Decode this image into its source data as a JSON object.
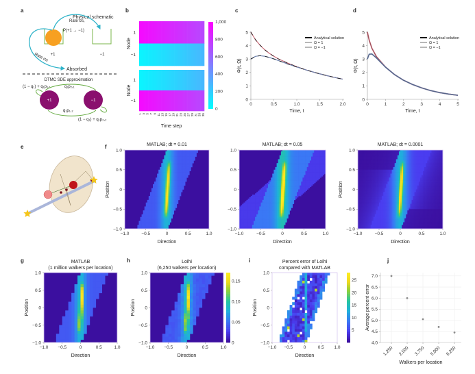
{
  "panel_labels": {
    "a": "a",
    "b": "b",
    "c": "c",
    "d": "d",
    "e": "e",
    "f": "f",
    "g": "g",
    "h": "h",
    "i": "i",
    "j": "j"
  },
  "panel_a": {
    "title": "Physical schematic",
    "rate_top": "Rate σs,",
    "prob": "P(+1 → −1)",
    "rate_left": "Rate σa",
    "absorbed": "Absorbed",
    "well_plus": "+1",
    "well_minus": "−1",
    "dtmc": "DTMC SDE approximation",
    "loop_plus": "(1 − q₁) + q₁p₁,₁",
    "edge_top": "q₁p₂,₁",
    "edge_bottom": "q₁p₁,₂",
    "loop_minus": "(1 − q₁) + q₁p₂,₂",
    "node_plus": "+1",
    "node_minus": "−1"
  },
  "colors": {
    "well": "#7ab648",
    "ball": "#f7a021",
    "arrow": "#2fb3c9",
    "node": "#8a0f6e",
    "omega_pos": "#c96a78",
    "omega_neg": "#6f82ad",
    "analytical": "#111111",
    "track": "#aab6da",
    "star": "#f5c518",
    "sphere": "#f1e4cc"
  },
  "chart_data": [
    {
      "id": "b",
      "type": "heatmap",
      "colormap": "cool",
      "xlabel": "Time step",
      "ylabel": "Node",
      "xticks": [
        "1",
        "3",
        "5",
        "7",
        "9",
        "11",
        "13",
        "15",
        "17",
        "19",
        "21",
        "23",
        "25",
        "27",
        "29",
        "31",
        "33",
        "35"
      ],
      "yticks": [
        "1",
        "−1"
      ],
      "colorbar": {
        "range": [
          0,
          1000
        ],
        "ticks": [
          {
            "v": 0,
            "t": "0"
          },
          {
            "v": 200,
            "t": "200"
          },
          {
            "v": 400,
            "t": "400"
          },
          {
            "v": 600,
            "t": "600"
          },
          {
            "v": 800,
            "t": "800"
          },
          {
            "v": 1000,
            "t": "1,000"
          }
        ]
      },
      "panels": [
        {
          "rows": [
            {
              "node": "1",
              "values": [
                960,
                953,
                946,
                939,
                932,
                925,
                918,
                911,
                904,
                897,
                890,
                883,
                876,
                869,
                862,
                855,
                848,
                841,
                834,
                827,
                820,
                813,
                806,
                799,
                792,
                785,
                778,
                771,
                764,
                757,
                750,
                743,
                736,
                729,
                722
              ]
            },
            {
              "node": "−1",
              "values": [
                40,
                47,
                54,
                61,
                68,
                75,
                82,
                89,
                96,
                103,
                110,
                117,
                124,
                131,
                138,
                145,
                152,
                159,
                166,
                173,
                180,
                187,
                194,
                201,
                208,
                215,
                222,
                229,
                236,
                243,
                250,
                257,
                264,
                271,
                278
              ]
            }
          ]
        },
        {
          "rows": [
            {
              "node": "1",
              "values": [
                40,
                47,
                54,
                61,
                68,
                75,
                82,
                89,
                96,
                103,
                110,
                117,
                124,
                131,
                138,
                145,
                152,
                159,
                166,
                173,
                180,
                187,
                194,
                201,
                208,
                215,
                222,
                229,
                236,
                243,
                250,
                257,
                264,
                271,
                278
              ]
            },
            {
              "node": "−1",
              "values": [
                960,
                953,
                946,
                939,
                932,
                925,
                918,
                911,
                904,
                897,
                890,
                883,
                876,
                869,
                862,
                855,
                848,
                841,
                834,
                827,
                820,
                813,
                806,
                799,
                792,
                785,
                778,
                771,
                764,
                757,
                750,
                743,
                736,
                729,
                722
              ]
            }
          ]
        }
      ]
    },
    {
      "id": "c",
      "type": "line",
      "xlabel": "Time, t",
      "ylabel": "Φ(t, Ω)",
      "xlim": [
        0,
        2.0
      ],
      "ylim": [
        0,
        5
      ],
      "xticks": [
        {
          "v": 0,
          "t": "0"
        },
        {
          "v": 0.5,
          "t": "0.5"
        },
        {
          "v": 1.0,
          "t": "1.0"
        },
        {
          "v": 1.5,
          "t": "1.5"
        },
        {
          "v": 2.0,
          "t": "2.0"
        }
      ],
      "yticks": [
        {
          "v": 0,
          "t": "0"
        },
        {
          "v": 1,
          "t": "1"
        },
        {
          "v": 2,
          "t": "2"
        },
        {
          "v": 3,
          "t": "3"
        },
        {
          "v": 4,
          "t": "4"
        },
        {
          "v": 5,
          "t": "5"
        }
      ],
      "legend": "top-right",
      "x": [
        0,
        0.1,
        0.2,
        0.3,
        0.4,
        0.5,
        0.6,
        0.8,
        1.0,
        1.2,
        1.4,
        1.6,
        1.8,
        2.0
      ],
      "series": [
        {
          "name": "Ω = 1",
          "color": "omega_pos",
          "values": [
            5.0,
            4.44,
            4.03,
            3.7,
            3.43,
            3.21,
            3.01,
            2.7,
            2.43,
            2.19,
            1.99,
            1.81,
            1.65,
            1.5
          ]
        },
        {
          "name": "Ω = −1",
          "color": "omega_neg",
          "values": [
            3.0,
            3.2,
            3.25,
            3.21,
            3.12,
            3.01,
            2.89,
            2.64,
            2.41,
            2.19,
            1.99,
            1.81,
            1.65,
            1.5
          ]
        }
      ],
      "analytical_name": "Analytical solution"
    },
    {
      "id": "d",
      "type": "line",
      "xlabel": "Time, t",
      "ylabel": "Φ(t, Ω)",
      "xlim": [
        0,
        5
      ],
      "ylim": [
        0,
        5
      ],
      "xticks": [
        {
          "v": 0,
          "t": "0"
        },
        {
          "v": 1,
          "t": "1"
        },
        {
          "v": 2,
          "t": "2"
        },
        {
          "v": 3,
          "t": "3"
        },
        {
          "v": 4,
          "t": "4"
        },
        {
          "v": 5,
          "t": "5"
        }
      ],
      "yticks": [
        {
          "v": 0,
          "t": "0"
        },
        {
          "v": 1,
          "t": "1"
        },
        {
          "v": 2,
          "t": "2"
        },
        {
          "v": 3,
          "t": "3"
        },
        {
          "v": 4,
          "t": "4"
        },
        {
          "v": 5,
          "t": "5"
        }
      ],
      "legend": "top-right",
      "x": [
        0,
        0.1,
        0.25,
        0.5,
        1,
        1.5,
        2,
        2.5,
        3,
        3.5,
        4,
        4.5,
        5
      ],
      "series": [
        {
          "name": "Ω = 1",
          "color": "omega_pos",
          "values": [
            5.0,
            4.41,
            3.8,
            3.18,
            2.41,
            1.84,
            1.42,
            1.1,
            0.85,
            0.65,
            0.5,
            0.39,
            0.3
          ]
        },
        {
          "name": "Ω = −1",
          "color": "omega_neg",
          "values": [
            3.0,
            3.36,
            3.38,
            3.08,
            2.4,
            1.84,
            1.42,
            1.1,
            0.85,
            0.65,
            0.5,
            0.39,
            0.3
          ]
        }
      ],
      "analytical_name": "Analytical solution"
    },
    {
      "id": "f1",
      "type": "heatmap",
      "title": "MATLAB; dt = 0.01",
      "xlabel": "Direction",
      "ylabel": "Position",
      "xlim": [
        -1,
        1
      ],
      "ylim": [
        -1,
        1
      ]
    },
    {
      "id": "f2",
      "type": "heatmap",
      "title": "MATLAB; dt = 0.05",
      "xlabel": "Direction",
      "ylabel": "",
      "xlim": [
        -1,
        1
      ],
      "ylim": [
        -1,
        1
      ]
    },
    {
      "id": "f3",
      "type": "heatmap",
      "title": "MATLAB; dt = 0.0001",
      "xlabel": "Direction",
      "ylabel": "Position",
      "xlim": [
        -1,
        1
      ],
      "ylim": [
        -1,
        1
      ]
    },
    {
      "id": "g",
      "type": "heatmap",
      "title": "MATLAB",
      "subtitle": "(1 million walkers per location)",
      "xlabel": "Direction",
      "ylabel": "Position",
      "xlim": [
        -1,
        1
      ],
      "ylim": [
        -1,
        1
      ]
    },
    {
      "id": "h",
      "type": "heatmap",
      "title": "Loihi",
      "subtitle": "(6,250 walkers per location)",
      "xlabel": "Direction",
      "ylabel": "Position",
      "xlim": [
        -1,
        1
      ],
      "ylim": [
        -1,
        1
      ],
      "colorbar": {
        "range": [
          0,
          0.17
        ],
        "ticks": [
          {
            "v": 0,
            "t": "0"
          },
          {
            "v": 0.05,
            "t": "0.05"
          },
          {
            "v": 0.1,
            "t": "0.10"
          },
          {
            "v": 0.15,
            "t": "0.15"
          }
        ]
      }
    },
    {
      "id": "i",
      "type": "heatmap",
      "title": "Percent error of Loihi",
      "subtitle": "compared with MATLAB",
      "xlabel": "Direction",
      "ylabel": "Position",
      "xlim": [
        -1,
        1
      ],
      "ylim": [
        -1,
        1
      ],
      "colorbar": {
        "range": [
          0,
          28
        ],
        "ticks": [
          {
            "v": 5,
            "t": "5"
          },
          {
            "v": 10,
            "t": "10"
          },
          {
            "v": 15,
            "t": "15"
          },
          {
            "v": 20,
            "t": "20"
          },
          {
            "v": 25,
            "t": "25"
          }
        ]
      }
    },
    {
      "id": "j",
      "type": "scatter",
      "xlabel": "Walkers per location",
      "ylabel": "Average percent error",
      "grid": true,
      "ylim": [
        4.0,
        7.0
      ],
      "xticks": [
        {
          "v": 1250,
          "t": "1,250"
        },
        {
          "v": 2500,
          "t": "2,500"
        },
        {
          "v": 3750,
          "t": "3,750"
        },
        {
          "v": 5000,
          "t": "5,000"
        },
        {
          "v": 6250,
          "t": "6,250"
        }
      ],
      "yticks": [
        {
          "v": 4.0,
          "t": "4.0"
        },
        {
          "v": 4.5,
          "t": "4.5"
        },
        {
          "v": 5.0,
          "t": "5.0"
        },
        {
          "v": 5.5,
          "t": "5.5"
        },
        {
          "v": 6.0,
          "t": "6.0"
        },
        {
          "v": 6.5,
          "t": "6.5"
        },
        {
          "v": 7.0,
          "t": "7.0"
        }
      ],
      "x": [
        1250,
        2500,
        3750,
        5000,
        6250
      ],
      "y": [
        7.0,
        6.0,
        5.05,
        4.7,
        4.45
      ]
    }
  ],
  "heatmap_ticks": {
    "x": [
      {
        "v": -1,
        "t": "−1.0"
      },
      {
        "v": -0.5,
        "t": "−0.5"
      },
      {
        "v": 0,
        "t": "0"
      },
      {
        "v": 0.5,
        "t": "0.5"
      },
      {
        "v": 1,
        "t": "1.0"
      }
    ],
    "y": [
      {
        "v": -1,
        "t": "−1.0"
      },
      {
        "v": -0.5,
        "t": "−0.5"
      },
      {
        "v": 0,
        "t": "0"
      },
      {
        "v": 0.5,
        "t": "0.5"
      },
      {
        "v": 1,
        "t": "1.0"
      }
    ]
  }
}
